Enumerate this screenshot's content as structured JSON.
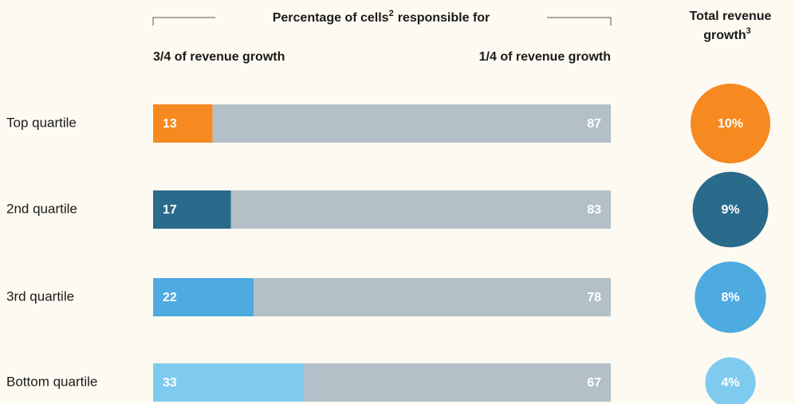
{
  "chart_data": {
    "type": "stacked-bar-horizontal",
    "title": "Percentage of cells",
    "title_superscript": "2",
    "title_suffix": "responsible for",
    "left_header": "3/4 of revenue growth",
    "right_header": "1/4 of revenue growth",
    "categories": [
      "Top quartile",
      "2nd quartile",
      "3rd quartile",
      "Bottom quartile"
    ],
    "xlim": [
      0,
      100
    ],
    "series": [
      {
        "name": "3/4 of revenue growth",
        "colors": [
          "#f6891f",
          "#2a6a8b",
          "#4dabe0",
          "#7fcbef"
        ],
        "values": [
          13,
          17,
          22,
          33
        ]
      },
      {
        "name": "1/4 of revenue growth",
        "color": "#b3c0c8",
        "values": [
          87,
          83,
          78,
          67
        ]
      }
    ],
    "bubbles": {
      "title": "Total revenue",
      "title_line2": "growth",
      "title_superscript": "3",
      "values": [
        10,
        9,
        8,
        4
      ],
      "value_labels": [
        "10%",
        "9%",
        "8%",
        "4%"
      ],
      "colors": [
        "#f6891f",
        "#2a6a8b",
        "#4dabe0",
        "#7fcbef"
      ]
    }
  }
}
